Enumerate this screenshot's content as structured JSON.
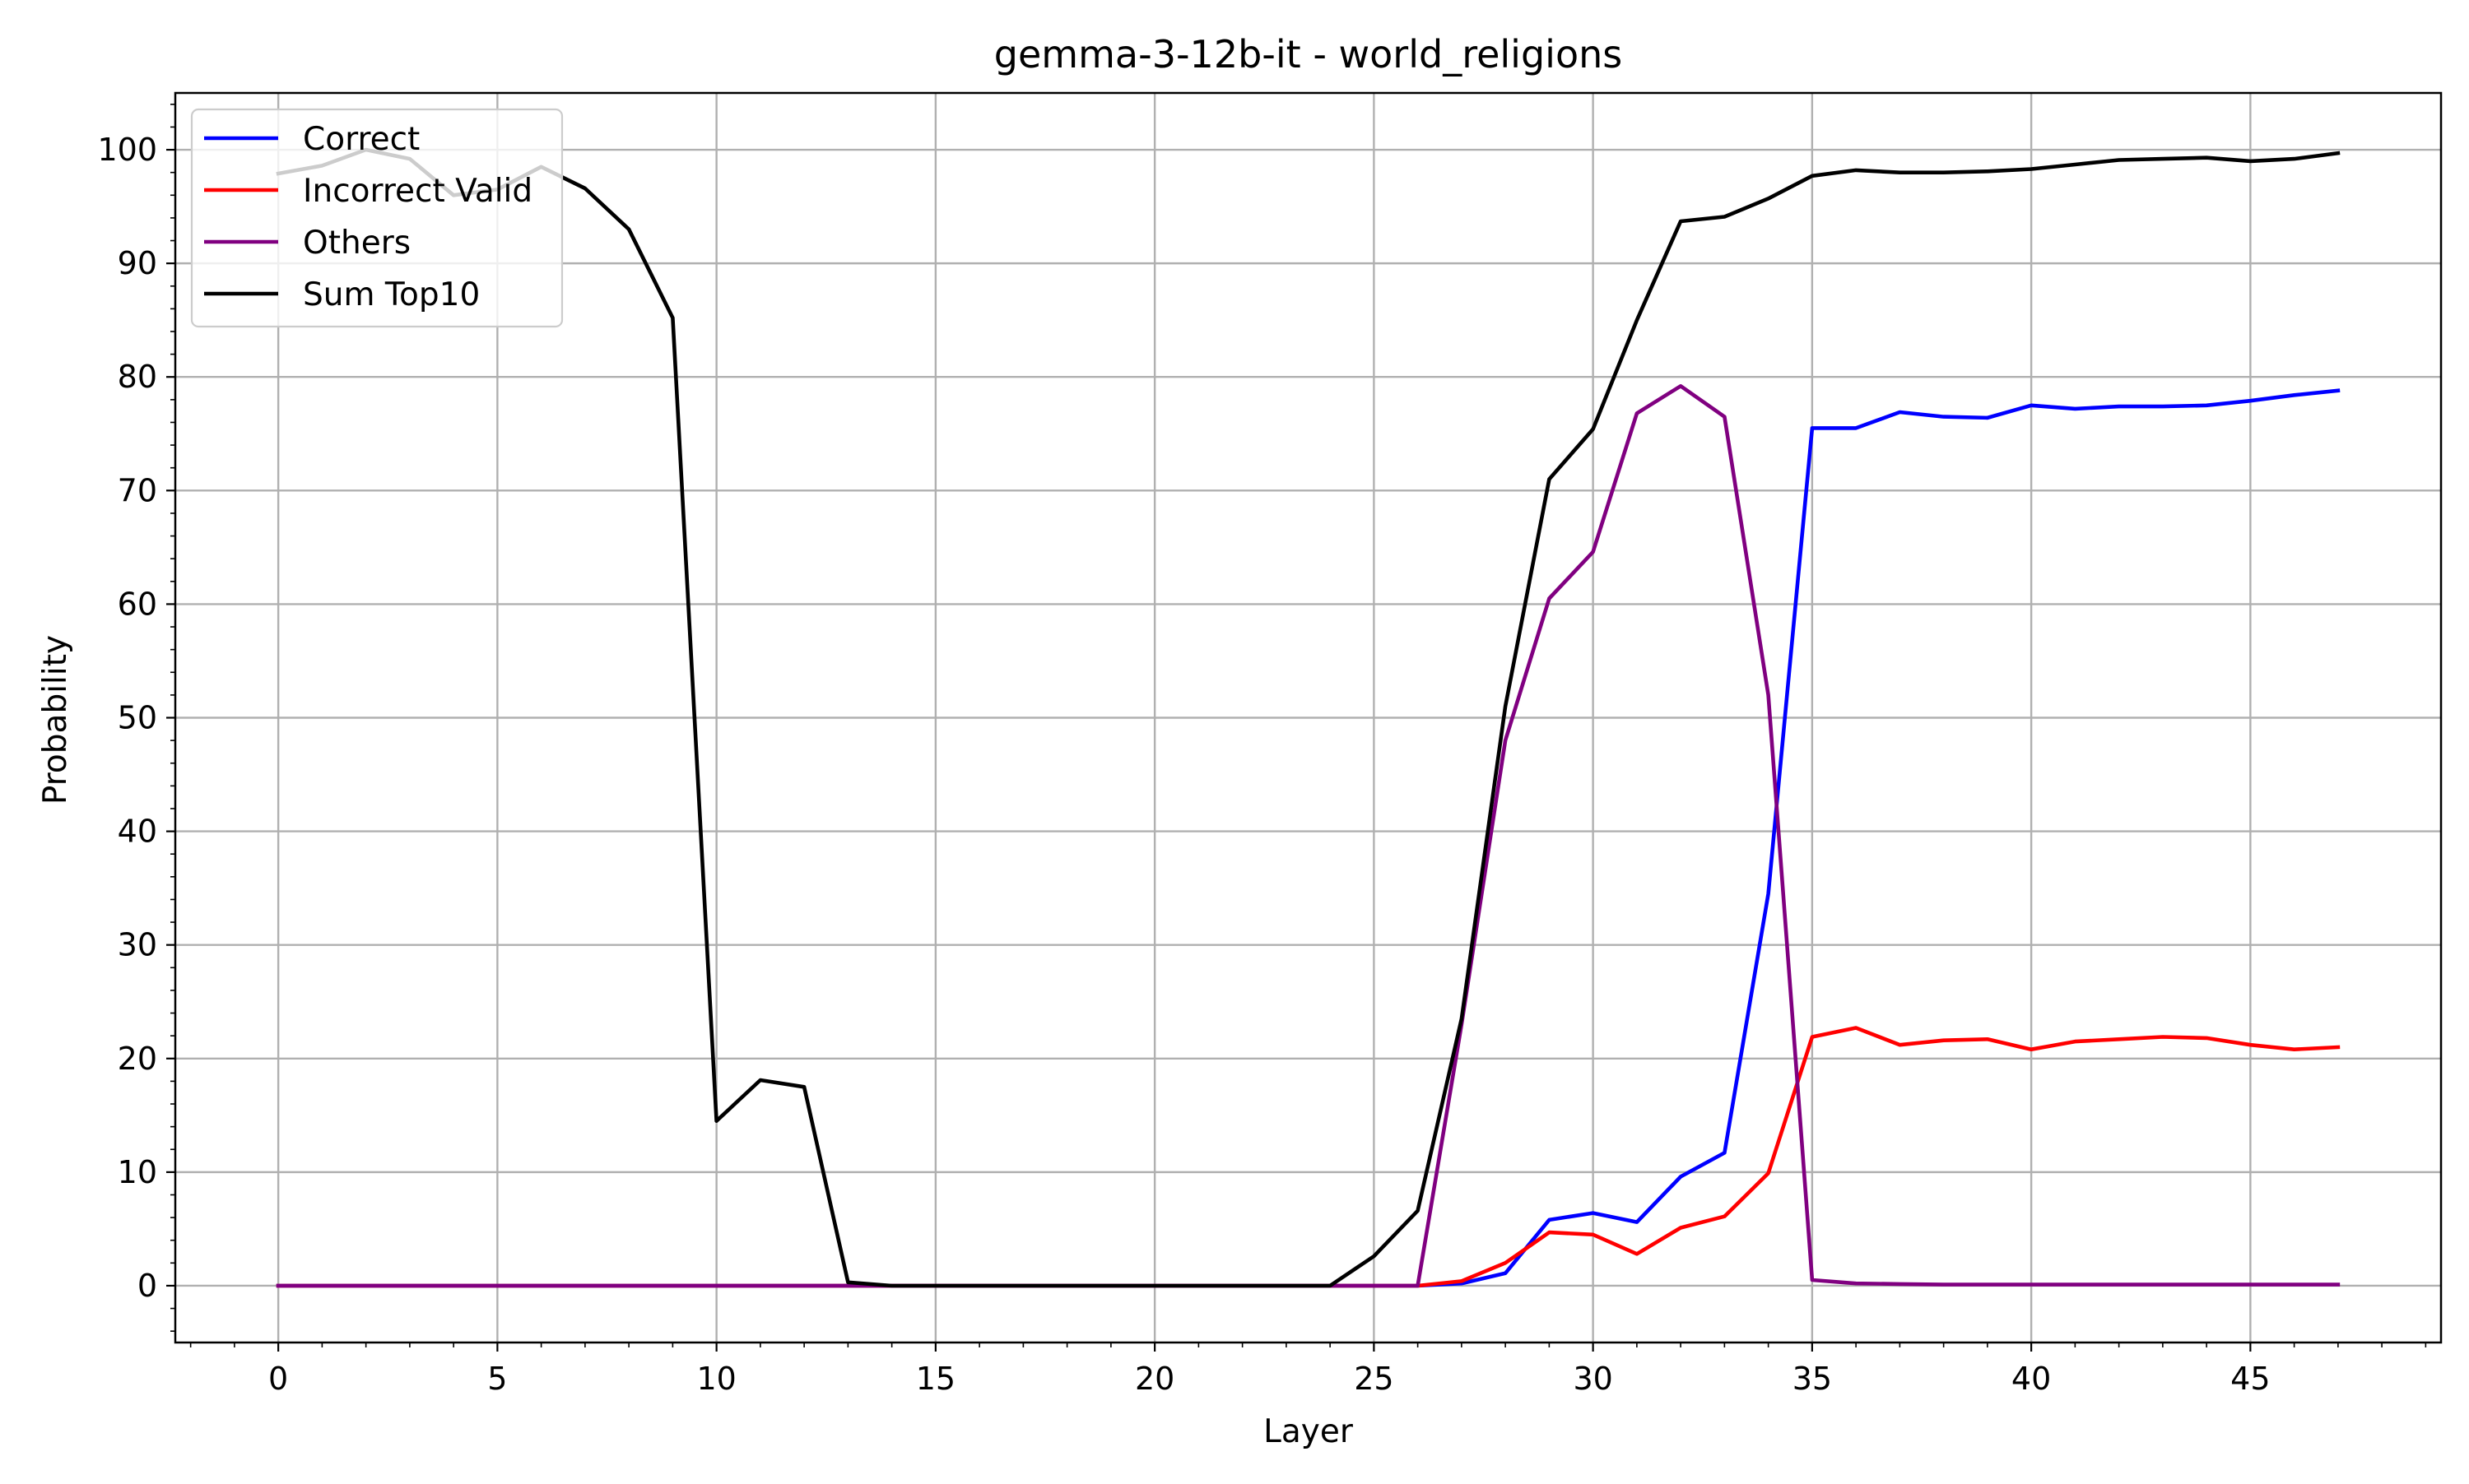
{
  "chart_data": {
    "type": "line",
    "title": "gemma-3-12b-it - world_religions",
    "xlabel": "Layer",
    "ylabel": "Probability",
    "xlim": [
      -2.35,
      49.35
    ],
    "ylim": [
      -5,
      105
    ],
    "xticks": [
      0,
      5,
      10,
      15,
      20,
      25,
      30,
      35,
      40,
      45
    ],
    "yticks": [
      0,
      10,
      20,
      30,
      40,
      50,
      60,
      70,
      80,
      90,
      100
    ],
    "grid": true,
    "legend_position": "top-left",
    "x": [
      0,
      1,
      2,
      3,
      4,
      5,
      6,
      7,
      8,
      9,
      10,
      11,
      12,
      13,
      14,
      15,
      16,
      17,
      18,
      19,
      20,
      21,
      22,
      23,
      24,
      25,
      26,
      27,
      28,
      29,
      30,
      31,
      32,
      33,
      34,
      35,
      36,
      37,
      38,
      39,
      40,
      41,
      42,
      43,
      44,
      45,
      46,
      47
    ],
    "series": [
      {
        "name": "Correct",
        "color": "#0000ff",
        "values": [
          0,
          0,
          0,
          0,
          0,
          0,
          0,
          0,
          0,
          0,
          0,
          0,
          0,
          0,
          0,
          0,
          0,
          0,
          0,
          0,
          0,
          0,
          0,
          0,
          0,
          0,
          0,
          0.2,
          1.1,
          5.8,
          6.4,
          5.6,
          9.6,
          11.7,
          34.5,
          75.5,
          75.5,
          76.9,
          76.5,
          76.4,
          77.5,
          77.2,
          77.4,
          77.4,
          77.5,
          77.9,
          78.4,
          78.8
        ]
      },
      {
        "name": "Incorrect Valid",
        "color": "#ff0000",
        "values": [
          0,
          0,
          0,
          0,
          0,
          0,
          0,
          0,
          0,
          0,
          0,
          0,
          0,
          0,
          0,
          0,
          0,
          0,
          0,
          0,
          0,
          0,
          0,
          0,
          0,
          0,
          0,
          0.4,
          2.0,
          4.7,
          4.5,
          2.8,
          5.1,
          6.1,
          9.9,
          21.9,
          22.7,
          21.2,
          21.6,
          21.7,
          20.8,
          21.5,
          21.7,
          21.9,
          21.8,
          21.2,
          20.8,
          21.0
        ]
      },
      {
        "name": "Others",
        "color": "#800080",
        "values": [
          0,
          0,
          0,
          0,
          0,
          0,
          0,
          0,
          0,
          0,
          0,
          0,
          0,
          0,
          0,
          0,
          0,
          0,
          0,
          0,
          0,
          0,
          0,
          0,
          0,
          0,
          0,
          23.0,
          48.0,
          60.5,
          64.6,
          76.8,
          79.2,
          76.5,
          52.0,
          0.5,
          0.2,
          0.15,
          0.1,
          0.1,
          0.1,
          0.1,
          0.1,
          0.1,
          0.1,
          0.1,
          0.1,
          0.1
        ]
      },
      {
        "name": "Sum Top10",
        "color": "#000000",
        "values": [
          97.9,
          98.6,
          100.0,
          99.2,
          96.0,
          96.5,
          98.5,
          96.6,
          93.0,
          85.2,
          14.5,
          18.1,
          17.5,
          0.3,
          0,
          0,
          0,
          0,
          0,
          0,
          0,
          0,
          0,
          0,
          0,
          2.6,
          6.6,
          23.5,
          51.0,
          71.0,
          75.4,
          85.0,
          93.7,
          94.1,
          95.7,
          97.7,
          98.2,
          98.0,
          98.0,
          98.1,
          98.3,
          98.7,
          99.1,
          99.2,
          99.3,
          99.0,
          99.2,
          99.7
        ]
      }
    ]
  }
}
